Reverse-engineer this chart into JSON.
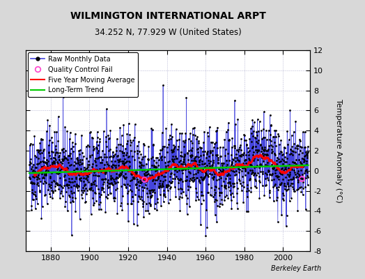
{
  "title": "WILMINGTON INTERNATIONAL ARPT",
  "subtitle": "34.252 N, 77.929 W (United States)",
  "ylabel": "Temperature Anomaly (°C)",
  "credit": "Berkeley Earth",
  "start_year": 1869,
  "end_year": 2013,
  "ylim": [
    -8,
    12
  ],
  "yticks": [
    -8,
    -6,
    -4,
    -2,
    0,
    2,
    4,
    6,
    8,
    10,
    12
  ],
  "xlim_start": 1867,
  "xlim_end": 2014,
  "bg_color": "#d8d8d8",
  "plot_bg_color": "#ffffff",
  "grid_color": "#aaaacc",
  "raw_line_color": "#4444dd",
  "raw_dot_color": "#000000",
  "moving_avg_color": "#ff0000",
  "trend_color": "#00cc00",
  "qc_fail_color": "#ff44cc",
  "seed": 42,
  "xticks": [
    1880,
    1900,
    1920,
    1940,
    1960,
    1980,
    2000
  ]
}
